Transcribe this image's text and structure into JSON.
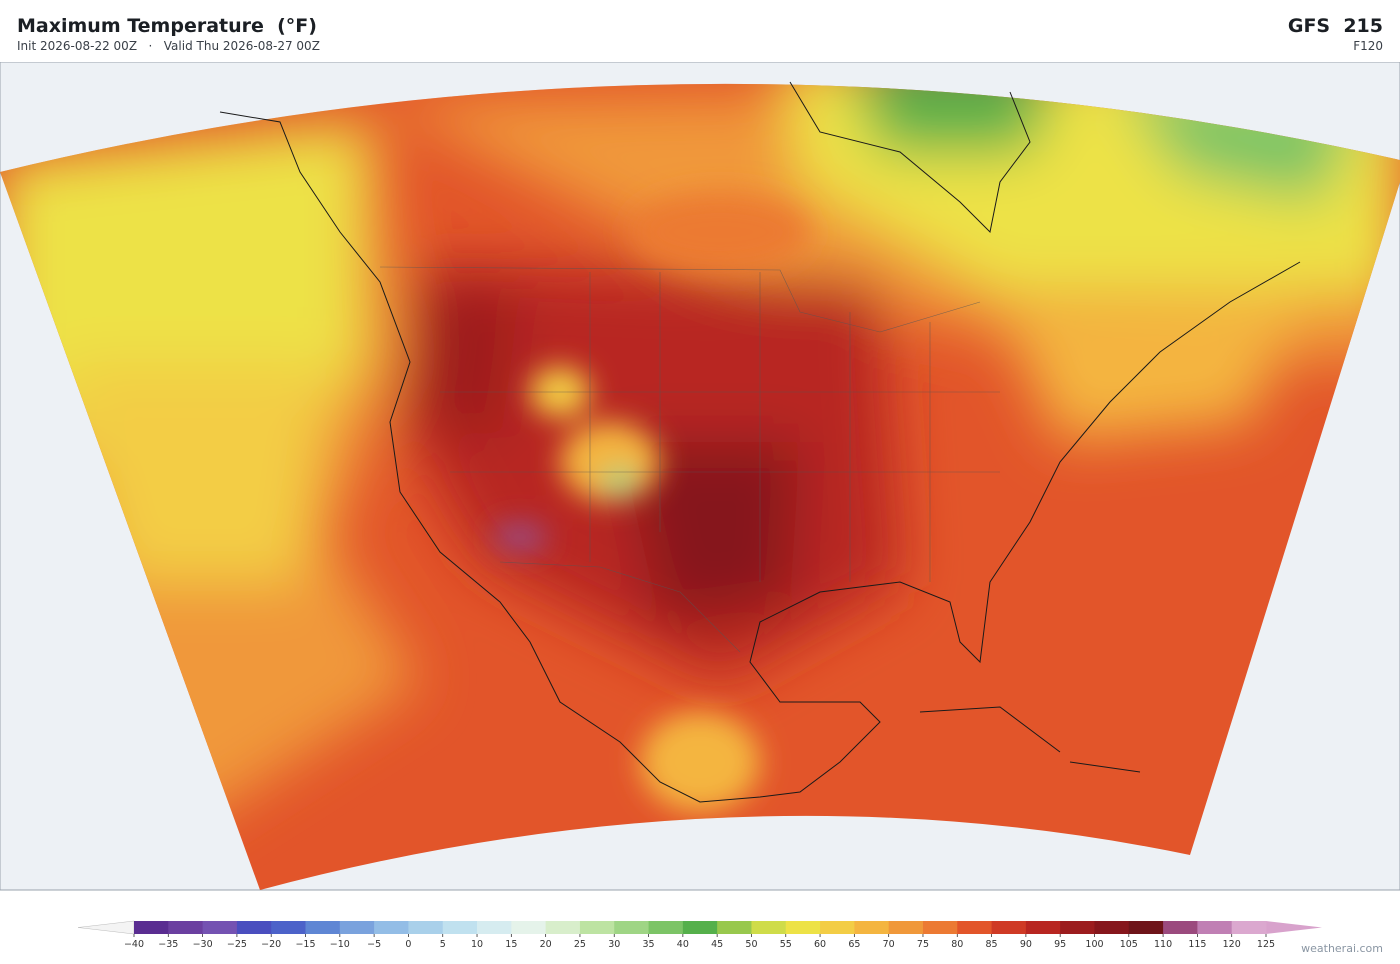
{
  "header": {
    "title": "Maximum Temperature  (°F)",
    "init": "Init 2026-08-22 00Z",
    "separator": "·",
    "valid": "Valid Thu 2026-08-27 00Z",
    "model": "GFS  215",
    "forecast_hour": "F120"
  },
  "colorbar": {
    "ticks": [
      {
        "value": -40,
        "label": "−40"
      },
      {
        "value": -35,
        "label": "−35"
      },
      {
        "value": -30,
        "label": "−30"
      },
      {
        "value": -25,
        "label": "−25"
      },
      {
        "value": -20,
        "label": "−20"
      },
      {
        "value": -15,
        "label": "−15"
      },
      {
        "value": -10,
        "label": "−10"
      },
      {
        "value": -5,
        "label": "−5"
      },
      0,
      5,
      10,
      15,
      20,
      25,
      30,
      35,
      40,
      45,
      50,
      55,
      60,
      65,
      70,
      75,
      80,
      85,
      90,
      95,
      100,
      105,
      110,
      115,
      120,
      125
    ],
    "colors": [
      "#5a2d91",
      "#6b3fa0",
      "#7452b2",
      "#4a4ebf",
      "#4c62c9",
      "#5f86d4",
      "#7aa2dd",
      "#93bde6",
      "#a9d0ea",
      "#c0e1ef",
      "#d6ecf0",
      "#e5f3ea",
      "#d8eecb",
      "#bde3a2",
      "#9fd585",
      "#7cc466",
      "#55b04b",
      "#98c84d",
      "#cfdc49",
      "#ede246",
      "#f3cd45",
      "#f4b540",
      "#f0983a",
      "#ec7a33",
      "#e2552a",
      "#cf3a25",
      "#b82621",
      "#9c1c1e",
      "#86161c",
      "#6e1419",
      "#9b4a7e",
      "#c07fb4",
      "#dba8cf"
    ],
    "under_color": "#f4f4f4",
    "over_color": "#d8a2cc"
  },
  "footer": {
    "watermark": "weatherai.com"
  }
}
